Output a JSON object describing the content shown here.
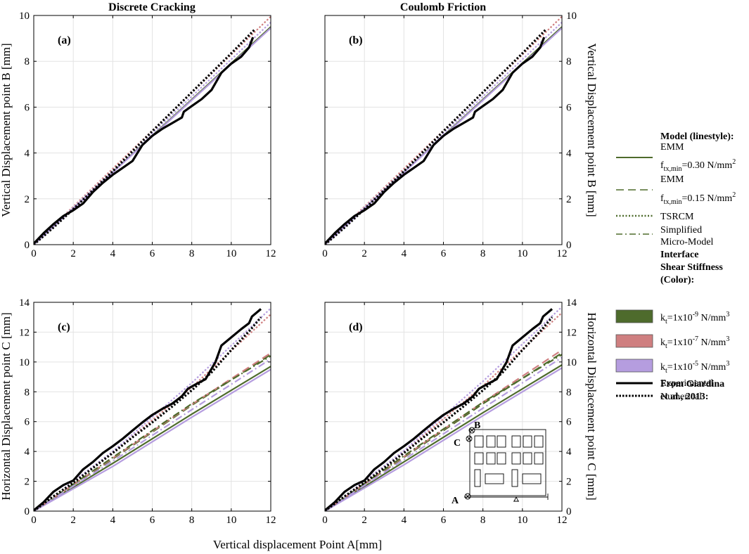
{
  "figure": {
    "xlabel": "Vertical displacement Point A[mm]"
  },
  "legend": {
    "model_heading": "Model (linestyle):",
    "entries": [
      {
        "style": "solid",
        "lines": [
          {
            "text": "EMM"
          },
          {
            "main": "f",
            "sub": "tx,min",
            "rest": "=0.30 N/mm",
            "sup": "2"
          }
        ]
      },
      {
        "style": "dashed",
        "lines": [
          {
            "text": "EMM"
          },
          {
            "main": "f",
            "sub": "tx,min",
            "rest": "=0.15 N/mm",
            "sup": "2"
          }
        ]
      },
      {
        "style": "dotted",
        "lines": [
          {
            "text": "TSRCM"
          }
        ]
      },
      {
        "style": "dashdot",
        "lines": [
          {
            "text": "Simplified"
          },
          {
            "text": "Micro-Model"
          }
        ]
      }
    ],
    "stiffness_heading": [
      "Interface",
      "Shear Stiffness",
      "(Color):"
    ],
    "stiffness_entries": [
      {
        "color": "#4e6b2c",
        "main": "k",
        "sub": "t",
        "mid": "=1x10",
        "exp": "-9",
        "unit": " N/mm",
        "unitsup": "3"
      },
      {
        "color": "#cf7f80",
        "main": "k",
        "sub": "t",
        "mid": "=1x10",
        "exp": "-7",
        "unit": " N/mm",
        "unitsup": "3"
      },
      {
        "color": "#b59ddf",
        "main": "k",
        "sub": "t",
        "mid": "=1x10",
        "exp": "-5",
        "unit": " N/mm",
        "unitsup": "3"
      }
    ],
    "source_heading": [
      "From Giardina",
      "et al., 2013:"
    ],
    "source_entries": [
      {
        "style": "solid",
        "label": "Experimental"
      },
      {
        "style": "dotted",
        "label": "Numerical"
      }
    ]
  },
  "inset": {
    "labels": {
      "a": "A",
      "b": "B",
      "c": "C"
    }
  },
  "colors": {
    "green": "#4e6b2c",
    "red": "#cf7f80",
    "purple": "#b59ddf",
    "black": "#000000",
    "grid": "#e3e3e3"
  },
  "chart_data": [
    {
      "id": "a",
      "panel_label": "(a)",
      "type": "line",
      "title": "Discrete Cracking",
      "ylabel": "Vertical Displacement point B [mm]",
      "xlim": [
        0,
        12
      ],
      "ylim": [
        0,
        10
      ],
      "xticks": [
        0,
        2,
        4,
        6,
        8,
        10,
        12
      ],
      "yticks": [
        0,
        2,
        4,
        6,
        8,
        10
      ],
      "series": [
        {
          "name": "EMM 0.30 k-9",
          "color": "green",
          "style": "solid",
          "x": [
            0,
            12
          ],
          "y": [
            0,
            9.5
          ]
        },
        {
          "name": "EMM 0.30 k-5",
          "color": "purple",
          "style": "solid",
          "x": [
            0,
            12
          ],
          "y": [
            0,
            9.45
          ]
        },
        {
          "name": "TSRCM k-7",
          "color": "red",
          "style": "dotted",
          "x": [
            0,
            12
          ],
          "y": [
            0,
            9.95
          ]
        },
        {
          "name": "TSRCM k-5",
          "color": "purple",
          "style": "dotted",
          "x": [
            0,
            12
          ],
          "y": [
            0,
            9.7
          ]
        },
        {
          "name": "Numerical",
          "color": "black",
          "style": "dotted",
          "x": [
            0,
            1,
            2,
            4,
            6,
            8,
            10,
            11.2
          ],
          "y": [
            0,
            0.75,
            1.55,
            3.2,
            4.95,
            6.65,
            8.35,
            9.4
          ]
        },
        {
          "name": "Experimental",
          "color": "black",
          "style": "solid",
          "x": [
            0,
            0.5,
            1,
            1.5,
            2,
            2.5,
            3,
            3.5,
            4,
            4.5,
            5,
            5.5,
            6,
            6.5,
            7,
            7.5,
            7.6,
            8,
            8.5,
            9,
            9.5,
            10,
            10.5,
            10.9,
            11.1
          ],
          "y": [
            0.05,
            0.5,
            0.9,
            1.25,
            1.5,
            1.8,
            2.3,
            2.7,
            3.05,
            3.35,
            3.65,
            4.35,
            4.75,
            5.05,
            5.3,
            5.55,
            5.8,
            6.05,
            6.35,
            6.75,
            7.5,
            7.9,
            8.2,
            8.6,
            9.05
          ]
        }
      ]
    },
    {
      "id": "b",
      "panel_label": "(b)",
      "type": "line",
      "title": "Coulomb Friction",
      "ylabel": "Vertical Displacement point B [mm]",
      "xlim": [
        0,
        12
      ],
      "ylim": [
        0,
        10
      ],
      "xticks": [
        0,
        2,
        4,
        6,
        8,
        10,
        12
      ],
      "yticks": [
        0,
        2,
        4,
        6,
        8,
        10
      ],
      "series": [
        {
          "name": "EMM 0.30 k-9",
          "color": "green",
          "style": "solid",
          "x": [
            0,
            12
          ],
          "y": [
            0,
            9.5
          ]
        },
        {
          "name": "EMM 0.30 k-5",
          "color": "purple",
          "style": "solid",
          "x": [
            0,
            12
          ],
          "y": [
            0,
            9.45
          ]
        },
        {
          "name": "TSRCM k-7",
          "color": "red",
          "style": "dotted",
          "x": [
            0,
            12
          ],
          "y": [
            0,
            9.95
          ]
        },
        {
          "name": "TSRCM k-5",
          "color": "purple",
          "style": "dotted",
          "x": [
            0,
            12
          ],
          "y": [
            0,
            9.7
          ]
        },
        {
          "name": "Numerical",
          "color": "black",
          "style": "dotted",
          "x": [
            0,
            1,
            2,
            4,
            6,
            8,
            10,
            11.2
          ],
          "y": [
            0,
            0.75,
            1.55,
            3.2,
            4.95,
            6.65,
            8.35,
            9.4
          ]
        },
        {
          "name": "Experimental",
          "color": "black",
          "style": "solid",
          "x": [
            0,
            0.5,
            1,
            1.5,
            2,
            2.5,
            3,
            3.5,
            4,
            4.5,
            5,
            5.5,
            6,
            6.5,
            7,
            7.5,
            7.6,
            8,
            8.5,
            9,
            9.5,
            10,
            10.5,
            10.9,
            11.1
          ],
          "y": [
            0.05,
            0.5,
            0.9,
            1.25,
            1.5,
            1.8,
            2.3,
            2.7,
            3.05,
            3.35,
            3.65,
            4.35,
            4.75,
            5.05,
            5.3,
            5.55,
            5.8,
            6.05,
            6.35,
            6.75,
            7.5,
            7.9,
            8.2,
            8.6,
            9.05
          ]
        }
      ]
    },
    {
      "id": "c",
      "panel_label": "(c)",
      "type": "line",
      "title": "",
      "ylabel": "Horizontal Displacement point C [mm]",
      "xlim": [
        0,
        12
      ],
      "ylim": [
        0,
        14
      ],
      "xticks": [
        0,
        2,
        4,
        6,
        8,
        10,
        12
      ],
      "yticks": [
        0,
        2,
        4,
        6,
        8,
        10,
        12,
        14
      ],
      "series": [
        {
          "name": "EMM 0.30 k-9",
          "color": "green",
          "style": "solid",
          "x": [
            0,
            4,
            8,
            12
          ],
          "y": [
            0,
            3.2,
            6.5,
            9.7
          ]
        },
        {
          "name": "EMM 0.30 k-5",
          "color": "purple",
          "style": "solid",
          "x": [
            0,
            4,
            8,
            12
          ],
          "y": [
            0,
            3.0,
            6.3,
            9.5
          ]
        },
        {
          "name": "EMM 0.15 k-9",
          "color": "green",
          "style": "dashed",
          "x": [
            0,
            4,
            8,
            12
          ],
          "y": [
            0,
            3.5,
            7.1,
            10.5
          ]
        },
        {
          "name": "EMM 0.15 k-7",
          "color": "red",
          "style": "dashed",
          "x": [
            0,
            4,
            8,
            12
          ],
          "y": [
            0,
            3.55,
            7.15,
            10.6
          ]
        },
        {
          "name": "SMM k-9",
          "color": "green",
          "style": "dashdot",
          "x": [
            0,
            4,
            8,
            12
          ],
          "y": [
            0,
            3.6,
            7.2,
            10.4
          ]
        },
        {
          "name": "SMM k-5",
          "color": "purple",
          "style": "dashdot",
          "x": [
            0,
            4,
            8,
            12
          ],
          "y": [
            0,
            3.35,
            6.8,
            10.2
          ]
        },
        {
          "name": "TSRCM k-7",
          "color": "red",
          "style": "dotted",
          "x": [
            0,
            4,
            8,
            12
          ],
          "y": [
            0,
            3.9,
            8.3,
            13.2
          ]
        },
        {
          "name": "TSRCM k-5",
          "color": "purple",
          "style": "dotted",
          "x": [
            0,
            4,
            8,
            12
          ],
          "y": [
            0,
            4.0,
            8.6,
            13.6
          ]
        },
        {
          "name": "Numerical",
          "color": "black",
          "style": "dotted",
          "x": [
            0,
            1,
            2,
            3,
            4,
            5,
            6,
            7,
            8,
            9,
            10,
            11,
            11.5
          ],
          "y": [
            0,
            1.0,
            1.9,
            2.9,
            3.9,
            4.95,
            5.95,
            7.0,
            8.1,
            9.3,
            10.8,
            12.2,
            13.0
          ]
        },
        {
          "name": "Experimental",
          "color": "black",
          "style": "solid",
          "x": [
            0,
            0.5,
            1,
            1.5,
            2,
            2.5,
            3,
            3.5,
            4,
            4.5,
            5,
            5.5,
            6,
            6.5,
            7,
            7.5,
            7.8,
            8.2,
            8.7,
            9.2,
            9.5,
            10,
            10.5,
            10.9,
            11.05,
            11.5
          ],
          "y": [
            0.05,
            0.6,
            1.3,
            1.75,
            2.05,
            2.8,
            3.3,
            3.9,
            4.35,
            4.85,
            5.4,
            5.95,
            6.45,
            6.85,
            7.2,
            7.7,
            8.2,
            8.5,
            8.85,
            10.0,
            11.1,
            11.65,
            12.2,
            12.6,
            13.05,
            13.55
          ]
        }
      ]
    },
    {
      "id": "d",
      "panel_label": "(d)",
      "type": "line",
      "title": "",
      "ylabel": "Horizontal Displacement point C [mm]",
      "xlim": [
        0,
        12
      ],
      "ylim": [
        0,
        14
      ],
      "xticks": [
        0,
        2,
        4,
        6,
        8,
        10,
        12
      ],
      "yticks": [
        0,
        2,
        4,
        6,
        8,
        10,
        12,
        14
      ],
      "series": [
        {
          "name": "EMM 0.30 k-9",
          "color": "green",
          "style": "solid",
          "x": [
            0,
            4,
            8,
            12
          ],
          "y": [
            0,
            3.3,
            6.6,
            9.8
          ]
        },
        {
          "name": "EMM 0.30 k-5",
          "color": "purple",
          "style": "solid",
          "x": [
            0,
            4,
            8,
            12
          ],
          "y": [
            0,
            3.1,
            6.4,
            9.6
          ]
        },
        {
          "name": "EMM 0.15 k-9",
          "color": "green",
          "style": "dashed",
          "x": [
            0,
            4,
            8,
            12
          ],
          "y": [
            0,
            3.6,
            7.2,
            10.6
          ]
        },
        {
          "name": "EMM 0.15 k-7",
          "color": "red",
          "style": "dashed",
          "x": [
            0,
            4,
            8,
            12
          ],
          "y": [
            0,
            3.65,
            7.3,
            10.8
          ]
        },
        {
          "name": "SMM k-9",
          "color": "green",
          "style": "dashdot",
          "x": [
            0,
            4,
            8,
            12
          ],
          "y": [
            0,
            3.7,
            7.3,
            10.5
          ]
        },
        {
          "name": "SMM k-5",
          "color": "purple",
          "style": "dashdot",
          "x": [
            0,
            4,
            8,
            12
          ],
          "y": [
            0,
            3.45,
            6.9,
            10.3
          ]
        },
        {
          "name": "TSRCM k-7",
          "color": "red",
          "style": "dotted",
          "x": [
            0,
            4,
            8,
            12
          ],
          "y": [
            0,
            3.95,
            8.4,
            13.3
          ]
        },
        {
          "name": "TSRCM k-5",
          "color": "purple",
          "style": "dotted",
          "x": [
            0,
            4,
            8,
            12
          ],
          "y": [
            0,
            4.05,
            8.7,
            13.7
          ]
        },
        {
          "name": "Numerical",
          "color": "black",
          "style": "dotted",
          "x": [
            0,
            1,
            2,
            3,
            4,
            5,
            6,
            7,
            8,
            9,
            10,
            11,
            11.5
          ],
          "y": [
            0,
            1.0,
            1.9,
            2.9,
            3.9,
            4.95,
            5.95,
            7.0,
            8.1,
            9.3,
            10.8,
            12.2,
            13.0
          ]
        },
        {
          "name": "Experimental",
          "color": "black",
          "style": "solid",
          "x": [
            0,
            0.5,
            1,
            1.5,
            2,
            2.5,
            3,
            3.5,
            4,
            4.5,
            5,
            5.5,
            6,
            6.5,
            7,
            7.5,
            7.8,
            8.2,
            8.7,
            9.2,
            9.5,
            10,
            10.5,
            10.9,
            11.05,
            11.5
          ],
          "y": [
            0.05,
            0.6,
            1.3,
            1.75,
            2.05,
            2.8,
            3.3,
            3.9,
            4.35,
            4.85,
            5.4,
            5.95,
            6.45,
            6.85,
            7.2,
            7.7,
            8.2,
            8.5,
            8.85,
            10.0,
            11.1,
            11.65,
            12.2,
            12.6,
            13.05,
            13.55
          ]
        }
      ]
    }
  ]
}
